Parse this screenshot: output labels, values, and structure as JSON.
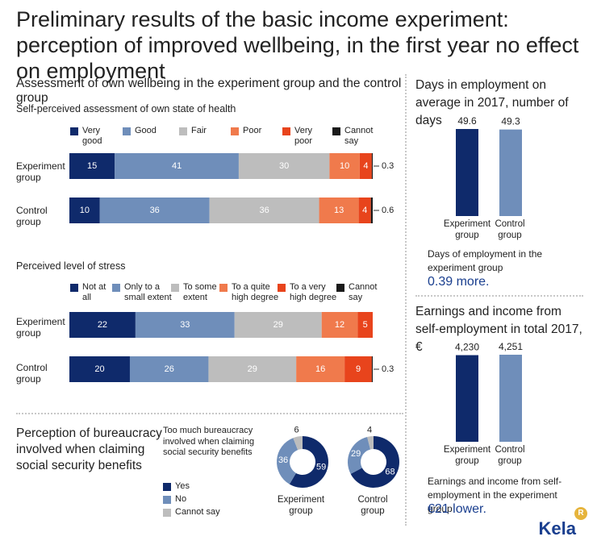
{
  "title": "Preliminary results of the basic income experiment: perception of improved wellbeing, in the first year no effect on employment",
  "colors": {
    "very_good": "#0f2a6b",
    "good": "#6f8eba",
    "fair": "#bdbdbd",
    "poor": "#f07a4c",
    "very_poor": "#e8441c",
    "cannot_say": "#1a1a1a",
    "brand": "#1a3f8f"
  },
  "wellbeing": {
    "heading": "Assessment of own wellbeing in the experiment group and the control group",
    "health": {
      "subheading": "Self-perceived assessment of own state of health",
      "legend": [
        "Very\ngood",
        "Good",
        "Fair",
        "Poor",
        "Very\npoor",
        "Cannot\nsay"
      ]
    },
    "stress": {
      "subheading": "Perceived level of stress",
      "legend": [
        "Not at\nall",
        "Only to a\nsmall extent",
        "To some\nextent",
        "To a quite\nhigh degree",
        "To a very\nhigh degree",
        "Cannot\nsay"
      ]
    },
    "group_labels": [
      "Experiment\ngroup",
      "Control\ngroup"
    ]
  },
  "bureaucracy": {
    "heading": "Perception of bureaucracy involved when claiming social security benefits",
    "question": "Too much bureaucracy involved when claiming social security benefits",
    "legend": [
      "Yes",
      "No",
      "Cannot say"
    ],
    "donut_labels": [
      "Experiment\ngroup",
      "Control\ngroup"
    ]
  },
  "employment": {
    "heading": "Days in employment on average in 2017, number of days",
    "note": "Days of employment in the experiment group",
    "note_value": "0.39 more."
  },
  "earnings": {
    "heading": "Earnings and income from self-employment in total 2017, €",
    "note": "Earnings and income from self-employment in the experiment group",
    "note_value": "€21 lower."
  },
  "logo": "Kela",
  "chart_data": [
    {
      "type": "bar",
      "orientation": "horizontal-stacked",
      "title": "Self-perceived assessment of own state of health",
      "categories": [
        "Experiment group",
        "Control group"
      ],
      "series": [
        {
          "name": "Very good",
          "values": [
            15,
            10
          ]
        },
        {
          "name": "Good",
          "values": [
            41,
            36
          ]
        },
        {
          "name": "Fair",
          "values": [
            30,
            36
          ]
        },
        {
          "name": "Poor",
          "values": [
            10,
            13
          ]
        },
        {
          "name": "Very poor",
          "values": [
            4,
            4
          ]
        },
        {
          "name": "Cannot say",
          "values": [
            0.3,
            0.6
          ]
        }
      ],
      "outside_labels": [
        "0.3",
        "0.6"
      ],
      "legend": "top"
    },
    {
      "type": "bar",
      "orientation": "horizontal-stacked",
      "title": "Perceived level of stress",
      "categories": [
        "Experiment group",
        "Control group"
      ],
      "series": [
        {
          "name": "Not at all",
          "values": [
            22,
            20
          ]
        },
        {
          "name": "Only to a small extent",
          "values": [
            33,
            26
          ]
        },
        {
          "name": "To some extent",
          "values": [
            29,
            29
          ]
        },
        {
          "name": "To a quite high degree",
          "values": [
            12,
            16
          ]
        },
        {
          "name": "To a very high degree",
          "values": [
            5,
            9
          ]
        },
        {
          "name": "Cannot say",
          "values": [
            0,
            0.3
          ]
        }
      ],
      "outside_labels": [
        "",
        "0.3"
      ],
      "legend": "top"
    },
    {
      "type": "pie",
      "variant": "donut",
      "title": "Too much bureaucracy involved when claiming social security benefits",
      "groups": [
        {
          "name": "Experiment group",
          "values": [
            59,
            36,
            6
          ]
        },
        {
          "name": "Control group",
          "values": [
            68,
            29,
            4
          ]
        }
      ],
      "labels": [
        "Yes",
        "No",
        "Cannot say"
      ]
    },
    {
      "type": "bar",
      "title": "Days in employment on average in 2017, number of days",
      "categories": [
        "Experiment group",
        "Control group"
      ],
      "values": [
        49.6,
        49.3
      ],
      "value_labels": [
        "49.6",
        "49.3"
      ]
    },
    {
      "type": "bar",
      "title": "Earnings and income from self-employment in total 2017, €",
      "categories": [
        "Experiment group",
        "Control group"
      ],
      "values": [
        4230,
        4251
      ],
      "value_labels": [
        "4,230",
        "4,251"
      ]
    }
  ]
}
